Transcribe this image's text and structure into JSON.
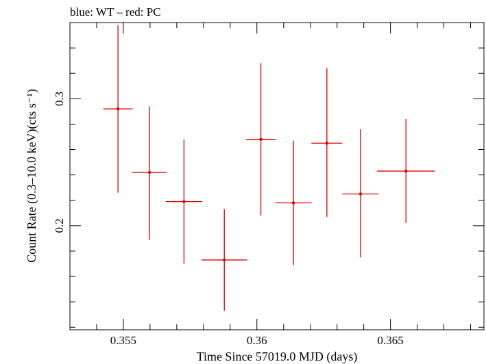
{
  "chart_data": {
    "type": "scatter",
    "title": "blue: WT – red: PC",
    "xlabel": "Time Since 57019.0 MJD (days)",
    "ylabel": "Count Rate (0.3–10.0 keV)(cts s⁻¹)",
    "xlim": [
      0.353,
      0.3685
    ],
    "ylim": [
      0.118,
      0.36
    ],
    "xticks": [
      0.355,
      0.36,
      0.365
    ],
    "xtick_labels": [
      "0.355",
      "0.36",
      "0.365"
    ],
    "yticks": [
      0.2,
      0.3
    ],
    "ytick_labels": [
      "0.2",
      "0.3"
    ],
    "grid": false,
    "series": [
      {
        "color": "#e00000",
        "points": [
          {
            "x": 0.3548,
            "y": 0.292,
            "xerr": 0.00055,
            "yerr_low": 0.066,
            "yerr_high": 0.066
          },
          {
            "x": 0.35598,
            "y": 0.242,
            "xerr": 0.00065,
            "yerr_low": 0.053,
            "yerr_high": 0.052
          },
          {
            "x": 0.35727,
            "y": 0.219,
            "xerr": 0.00068,
            "yerr_low": 0.049,
            "yerr_high": 0.049
          },
          {
            "x": 0.35878,
            "y": 0.173,
            "xerr": 0.00085,
            "yerr_low": 0.04,
            "yerr_high": 0.04
          },
          {
            "x": 0.36015,
            "y": 0.268,
            "xerr": 0.00055,
            "yerr_low": 0.06,
            "yerr_high": 0.06
          },
          {
            "x": 0.36137,
            "y": 0.218,
            "xerr": 0.00068,
            "yerr_low": 0.049,
            "yerr_high": 0.049
          },
          {
            "x": 0.36262,
            "y": 0.265,
            "xerr": 0.00058,
            "yerr_low": 0.058,
            "yerr_high": 0.059
          },
          {
            "x": 0.36388,
            "y": 0.225,
            "xerr": 0.00068,
            "yerr_low": 0.05,
            "yerr_high": 0.051
          },
          {
            "x": 0.36558,
            "y": 0.243,
            "xerr": 0.00108,
            "yerr_low": 0.041,
            "yerr_high": 0.041
          }
        ]
      }
    ]
  }
}
